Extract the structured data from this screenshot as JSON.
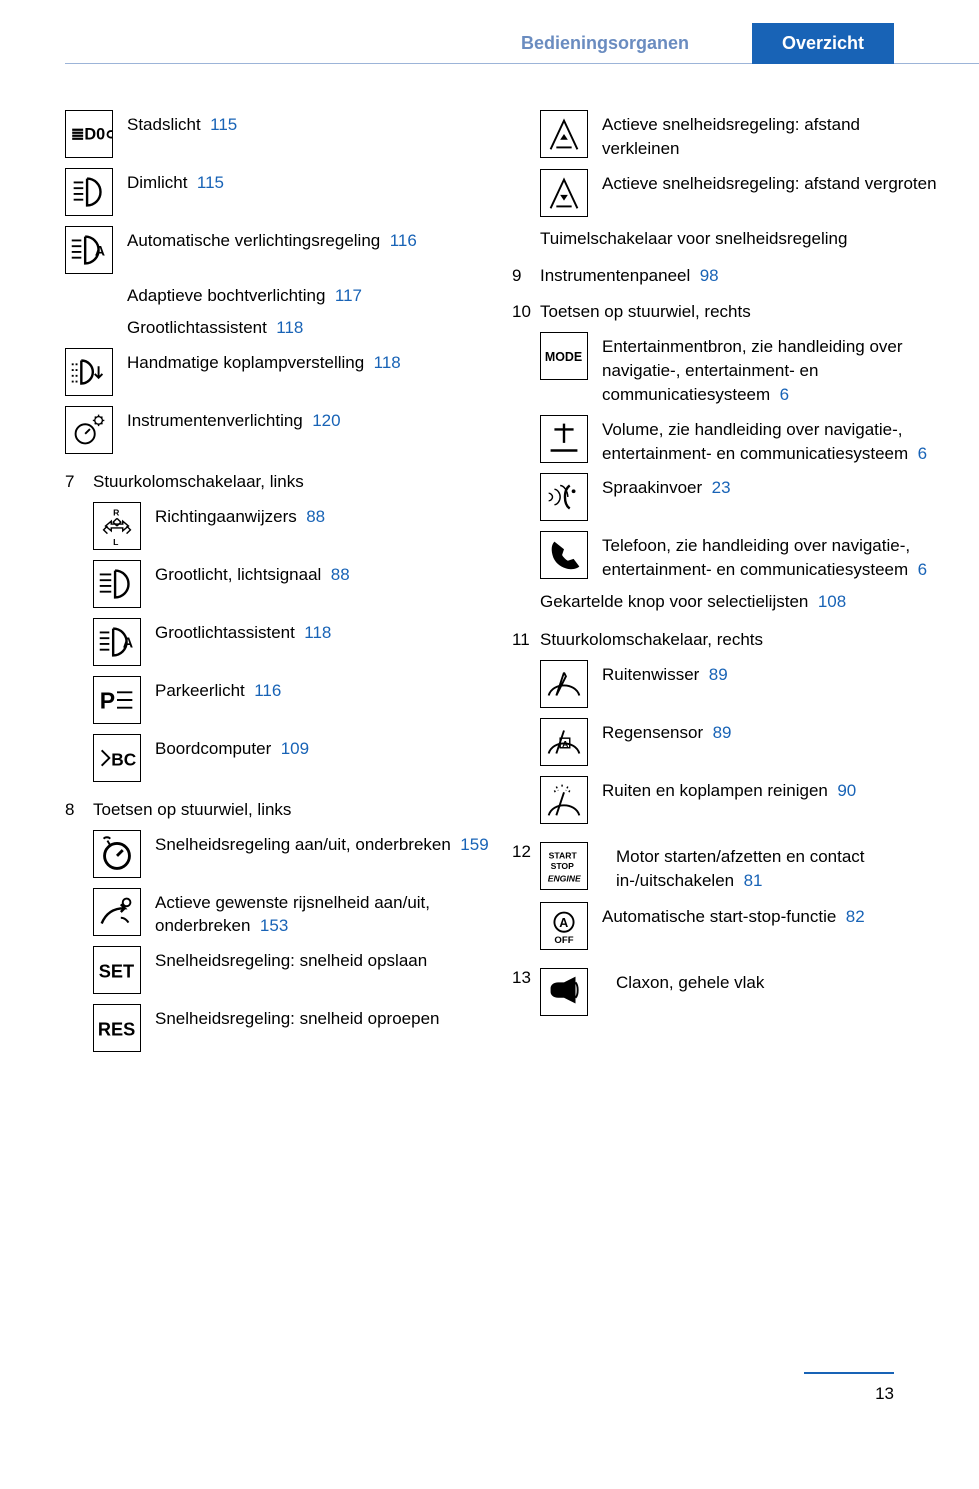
{
  "header": {
    "breadcrumb": "Bedieningsorganen",
    "tab": "Overzicht"
  },
  "colors": {
    "link": "#1863b6",
    "breadcrumb": "#6a8cc0",
    "rule": "#9cb4d8"
  },
  "page_number": "13",
  "left_column": [
    {
      "type": "icon_item",
      "icon": "stadslicht",
      "text": "Stadslicht",
      "page": "115"
    },
    {
      "type": "icon_item",
      "icon": "dimlicht",
      "text": "Dimlicht",
      "page": "115"
    },
    {
      "type": "icon_item",
      "icon": "auto_light",
      "text": "Automatische verlichtingsregeling",
      "page": "116"
    },
    {
      "type": "sub_item",
      "text": "Adaptieve bochtverlichting",
      "page": "117"
    },
    {
      "type": "sub_item",
      "text": "Grootlichtassistent",
      "page": "118"
    },
    {
      "type": "icon_item",
      "icon": "koplamp",
      "text": "Handmatige koplampverstelling",
      "page": "118"
    },
    {
      "type": "icon_item",
      "icon": "instrument",
      "text": "Instrumentenverlichting",
      "page": "120"
    },
    {
      "type": "section",
      "num": "7",
      "title": "Stuurkolomschakelaar, links"
    },
    {
      "type": "icon_item",
      "icon": "richting",
      "text": "Richtingaanwijzers",
      "page": "88",
      "indent": true
    },
    {
      "type": "icon_item",
      "icon": "grootlicht",
      "text": "Grootlicht, lichtsignaal",
      "page": "88",
      "indent": true
    },
    {
      "type": "icon_item",
      "icon": "grootlicht_a",
      "text": "Grootlichtassistent",
      "page": "118",
      "indent": true
    },
    {
      "type": "icon_item",
      "icon": "parkeer",
      "text": "Parkeerlicht",
      "page": "116",
      "indent": true
    },
    {
      "type": "icon_item",
      "icon": "bc",
      "text": "Boordcomputer",
      "page": "109",
      "indent": true
    },
    {
      "type": "section",
      "num": "8",
      "title": "Toetsen op stuurwiel, links"
    },
    {
      "type": "icon_item",
      "icon": "snelh_aan",
      "text": "Snelheidsregeling aan/uit, onderbreken",
      "page": "159",
      "indent": true
    },
    {
      "type": "icon_item",
      "icon": "actief_snelh",
      "text": "Actieve gewenste rijsnelheid aan/uit, onderbreken",
      "page": "153",
      "indent": true
    },
    {
      "type": "icon_item",
      "icon": "set",
      "text": "Snelheidsregeling: snelheid opslaan",
      "indent": true
    },
    {
      "type": "icon_item",
      "icon": "res",
      "text": "Snelheidsregeling: snelheid oproepen",
      "indent": true
    }
  ],
  "right_column": [
    {
      "type": "icon_item",
      "icon": "afstand_min",
      "text": "Actieve snelheidsregeling: afstand verkleinen",
      "indent": true
    },
    {
      "type": "icon_item",
      "icon": "afstand_plus",
      "text": "Actieve snelheidsregeling: afstand vergroten",
      "indent": true
    },
    {
      "type": "text_indent",
      "text": "Tuimelschakelaar voor snelheidsregeling"
    },
    {
      "type": "section",
      "num": "9",
      "title": "Instrumentenpaneel",
      "page": "98"
    },
    {
      "type": "section",
      "num": "10",
      "title": "Toetsen op stuurwiel, rechts"
    },
    {
      "type": "icon_item",
      "icon": "mode",
      "text": "Entertainmentbron, zie handleiding over navigatie-, entertainment- en communicatiesysteem",
      "page": "6",
      "indent": true
    },
    {
      "type": "icon_item",
      "icon": "volume",
      "text": "Volume, zie handleiding over navigatie-, entertainment- en communicatiesysteem",
      "page": "6",
      "indent": true
    },
    {
      "type": "icon_item",
      "icon": "voice",
      "text": "Spraakinvoer",
      "page": "23",
      "indent": true
    },
    {
      "type": "icon_item",
      "icon": "phone",
      "text": "Telefoon, zie handleiding over navigatie-, entertainment- en communicatiesysteem",
      "page": "6",
      "indent": true
    },
    {
      "type": "text_indent",
      "text": "Gekartelde knop voor selectielijsten",
      "page": "108"
    },
    {
      "type": "section",
      "num": "11",
      "title": "Stuurkolomschakelaar, rechts"
    },
    {
      "type": "icon_item",
      "icon": "wisser",
      "text": "Ruitenwisser",
      "page": "89",
      "indent": true
    },
    {
      "type": "icon_item",
      "icon": "regen",
      "text": "Regensensor",
      "page": "89",
      "indent": true
    },
    {
      "type": "icon_item",
      "icon": "reinigen",
      "text": "Ruiten en koplampen reinigen",
      "page": "90",
      "indent": true
    },
    {
      "type": "section_icon",
      "num": "12",
      "icon": "startstop",
      "text": "Motor starten/afzetten en contact in-/uitschakelen",
      "page": "81"
    },
    {
      "type": "icon_item",
      "icon": "autostartstop",
      "text": "Automatische start-stop-functie",
      "page": "82",
      "indent": true
    },
    {
      "type": "section_icon",
      "num": "13",
      "icon": "claxon",
      "text": "Claxon, gehele vlak"
    }
  ],
  "icons": {
    "stadslicht": "≣D0⊂",
    "dimlicht": "dim",
    "auto_light": "aut",
    "koplamp": "kop",
    "instrument": "inst",
    "richting": "dir",
    "grootlicht": "gl",
    "grootlicht_a": "gla",
    "parkeer": "P≤",
    "bc": "▷ BC",
    "snelh_aan": "sp",
    "actief_snelh": "asp",
    "set": "SET",
    "res": "RES",
    "afstand_min": "am",
    "afstand_plus": "ap",
    "mode": "MODE",
    "volume": "vol",
    "voice": "voi",
    "phone": "ph",
    "wisser": "wis",
    "regen": "reg",
    "reinigen": "rei",
    "startstop": "ss",
    "autostartstop": "ass",
    "claxon": "cx"
  }
}
